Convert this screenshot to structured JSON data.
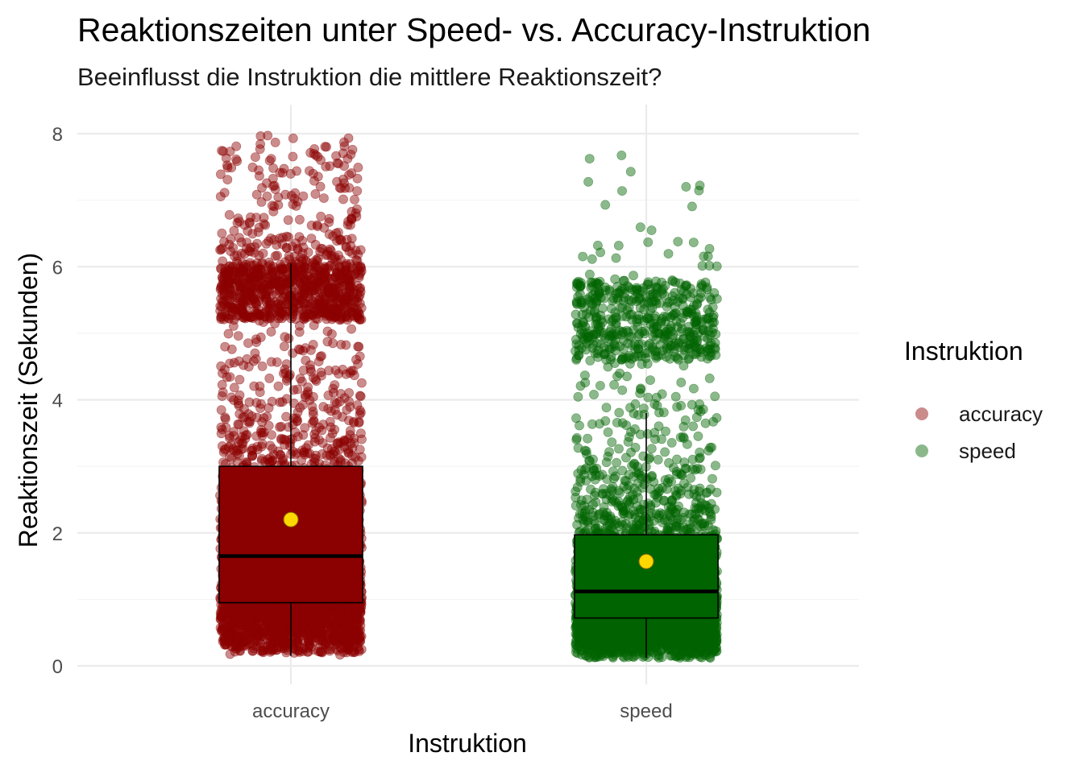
{
  "title": "Reaktionszeiten unter Speed- vs. Accuracy-Instruktion",
  "subtitle": "Beeinflusst die Instruktion die mittlere Reaktionszeit?",
  "legend": {
    "title": "Instruktion",
    "items": [
      {
        "label": "accuracy",
        "color": "#8b0000"
      },
      {
        "label": "speed",
        "color": "#006400"
      }
    ]
  },
  "chart_data": {
    "type": "boxplot with jittered points",
    "title": "Reaktionszeiten unter Speed- vs. Accuracy-Instruktion",
    "subtitle": "Beeinflusst die Instruktion die mittlere Reaktionszeit?",
    "xlabel": "Instruktion",
    "ylabel": "Reaktionszeit (Sekunden)",
    "categories": [
      "accuracy",
      "speed"
    ],
    "ylim": [
      0,
      8.1
    ],
    "yticks": [
      0,
      2,
      4,
      6,
      8
    ],
    "grid": true,
    "legend_position": "right",
    "mean_marker_color": "#ffd700",
    "groups": [
      {
        "name": "accuracy",
        "color": "#8b0000",
        "box": {
          "lower_whisker": 0.15,
          "q1": 0.95,
          "median": 1.65,
          "q3": 3.0,
          "upper_whisker": 6.05
        },
        "mean": 2.2,
        "points_ymin": 0.15,
        "points_ymax": 8.0
      },
      {
        "name": "speed",
        "color": "#006400",
        "box": {
          "lower_whisker": 0.12,
          "q1": 0.72,
          "median": 1.12,
          "q3": 1.97,
          "upper_whisker": 3.8
        },
        "mean": 1.57,
        "points_ymin": 0.1,
        "points_ymax": 7.7
      }
    ]
  }
}
